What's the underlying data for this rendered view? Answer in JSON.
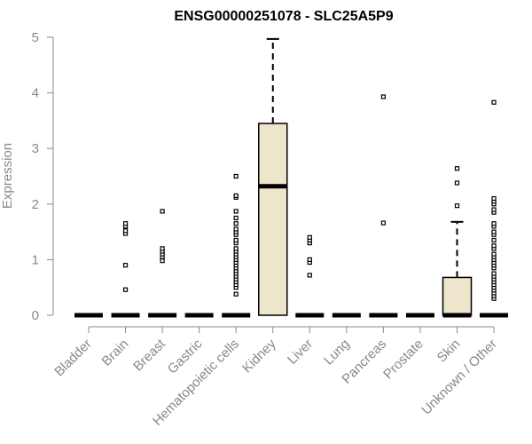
{
  "chart_data": {
    "type": "box",
    "title": "ENSG00000251078 - SLC25A5P9",
    "xlabel": "",
    "ylabel": "Expression",
    "ylim": [
      0,
      5
    ],
    "yticks": [
      0,
      1,
      2,
      3,
      4,
      5
    ],
    "grid": false,
    "legend": "none",
    "box_fill": "#EDE6CC",
    "categories": [
      "Bladder",
      "Brain",
      "Breast",
      "Gastric",
      "Hematopoietic cells",
      "Kidney",
      "Liver",
      "Lung",
      "Pancreas",
      "Prostate",
      "Skin",
      "Unknown / Other"
    ],
    "boxes": [
      {
        "category": "Bladder",
        "q1": 0,
        "median": 0,
        "q3": 0,
        "whisker_low": 0,
        "whisker_high": 0,
        "outliers": []
      },
      {
        "category": "Brain",
        "q1": 0,
        "median": 0,
        "q3": 0,
        "whisker_low": 0,
        "whisker_high": 0,
        "outliers": [
          0.46,
          0.9,
          1.47,
          1.52,
          1.6,
          1.65
        ]
      },
      {
        "category": "Breast",
        "q1": 0,
        "median": 0,
        "q3": 0,
        "whisker_low": 0,
        "whisker_high": 0,
        "outliers": [
          0.98,
          1.05,
          1.1,
          1.15,
          1.2,
          1.87
        ]
      },
      {
        "category": "Gastric",
        "q1": 0,
        "median": 0,
        "q3": 0,
        "whisker_low": 0,
        "whisker_high": 0,
        "outliers": []
      },
      {
        "category": "Hematopoietic cells",
        "q1": 0,
        "median": 0,
        "q3": 0,
        "whisker_low": 0,
        "whisker_high": 0,
        "outliers": [
          0.38,
          0.5,
          0.55,
          0.6,
          0.65,
          0.7,
          0.75,
          0.8,
          0.85,
          0.9,
          0.95,
          1.0,
          1.05,
          1.1,
          1.15,
          1.2,
          1.3,
          1.35,
          1.45,
          1.5,
          1.55,
          1.65,
          1.75,
          1.87,
          2.12,
          2.15,
          2.5
        ]
      },
      {
        "category": "Kidney",
        "q1": 0,
        "median": 2.32,
        "q3": 3.45,
        "whisker_low": 0,
        "whisker_high": 4.97,
        "outliers": []
      },
      {
        "category": "Liver",
        "q1": 0,
        "median": 0,
        "q3": 0,
        "whisker_low": 0,
        "whisker_high": 0,
        "outliers": [
          0.72,
          0.95,
          1.0,
          1.3,
          1.35,
          1.4
        ]
      },
      {
        "category": "Lung",
        "q1": 0,
        "median": 0,
        "q3": 0,
        "whisker_low": 0,
        "whisker_high": 0,
        "outliers": []
      },
      {
        "category": "Pancreas",
        "q1": 0,
        "median": 0,
        "q3": 0,
        "whisker_low": 0,
        "whisker_high": 0,
        "outliers": [
          1.66,
          3.93
        ]
      },
      {
        "category": "Prostate",
        "q1": 0,
        "median": 0,
        "q3": 0,
        "whisker_low": 0,
        "whisker_high": 0,
        "outliers": []
      },
      {
        "category": "Skin",
        "q1": 0,
        "median": 0,
        "q3": 0.68,
        "whisker_low": 0,
        "whisker_high": 1.68,
        "outliers": [
          1.97,
          2.38,
          2.64
        ]
      },
      {
        "category": "Unknown / Other",
        "q1": 0,
        "median": 0,
        "q3": 0,
        "whisker_low": 0,
        "whisker_high": 0,
        "outliers": [
          0.3,
          0.35,
          0.4,
          0.45,
          0.5,
          0.55,
          0.6,
          0.65,
          0.7,
          0.75,
          0.85,
          0.9,
          0.95,
          1.0,
          1.05,
          1.1,
          1.2,
          1.25,
          1.35,
          1.45,
          1.5,
          1.6,
          1.65,
          1.85,
          1.9,
          2.0,
          2.05,
          2.1,
          3.83
        ]
      }
    ]
  }
}
